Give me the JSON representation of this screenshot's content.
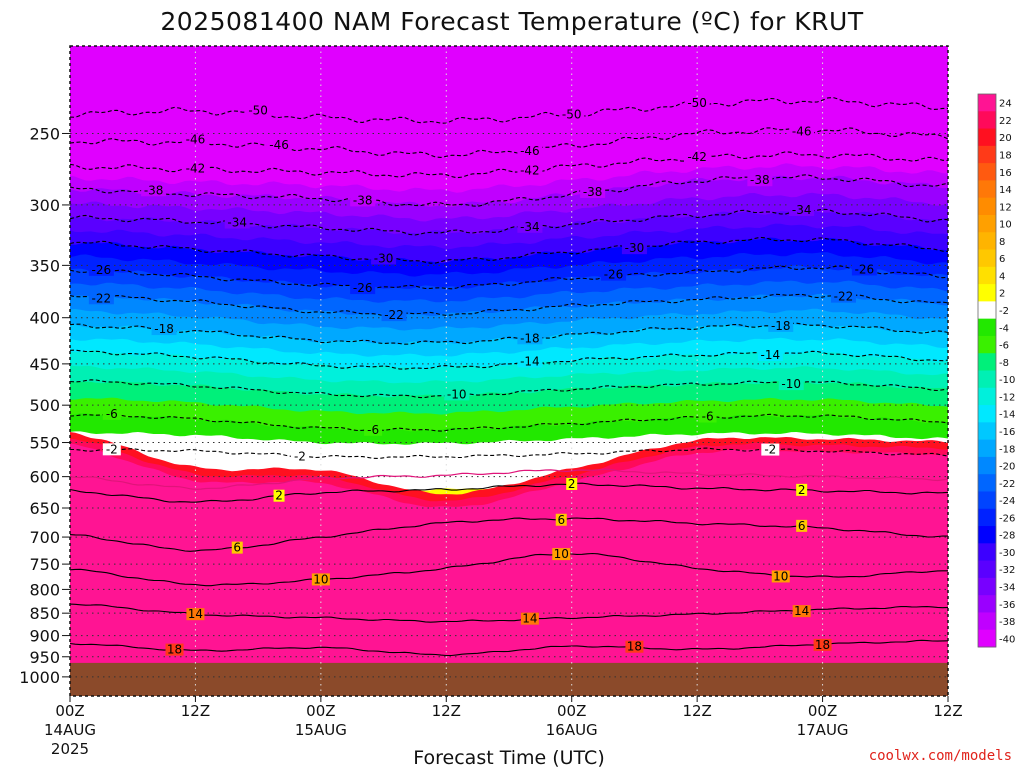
{
  "title": "2025081400 NAM Forecast Temperature (ºC) for KRUT",
  "credit": "coolwx.com/models",
  "chart_data": {
    "type": "heatmap",
    "title": "2025081400 NAM Forecast Temperature (ºC) for KRUT",
    "xlabel": "Forecast Time (UTC)",
    "ylabel": "",
    "x_ticks": [
      {
        "top": "00Z",
        "mid": "14AUG",
        "bot": "2025"
      },
      {
        "top": "12Z",
        "mid": "",
        "bot": ""
      },
      {
        "top": "00Z",
        "mid": "15AUG",
        "bot": ""
      },
      {
        "top": "12Z",
        "mid": "",
        "bot": ""
      },
      {
        "top": "00Z",
        "mid": "16AUG",
        "bot": ""
      },
      {
        "top": "12Z",
        "mid": "",
        "bot": ""
      },
      {
        "top": "00Z",
        "mid": "17AUG",
        "bot": ""
      },
      {
        "top": "12Z",
        "mid": "",
        "bot": ""
      }
    ],
    "y_ticks": [
      "250",
      "300",
      "350",
      "400",
      "450",
      "500",
      "550",
      "600",
      "650",
      "700",
      "750",
      "800",
      "850",
      "900",
      "950",
      "1000"
    ],
    "y_scale": "log pressure (hPa), inverted",
    "ylim": [
      1050,
      200
    ],
    "xlim_hours": [
      0,
      84
    ],
    "grid": true,
    "colorbar_labels": [
      "24",
      "22",
      "20",
      "18",
      "16",
      "14",
      "12",
      "10",
      "8",
      "6",
      "4",
      "2",
      "-2",
      "-4",
      "-6",
      "-8",
      "-10",
      "-12",
      "-14",
      "-16",
      "-18",
      "-20",
      "-22",
      "-24",
      "-26",
      "-28",
      "-30",
      "-32",
      "-34",
      "-36",
      "-38",
      "-40"
    ],
    "colorbar_colors": [
      "#ff1493",
      "#ff0a5a",
      "#ff1020",
      "#ff3a18",
      "#ff5a10",
      "#ff7808",
      "#ff8c00",
      "#ffa000",
      "#ffb400",
      "#ffc800",
      "#ffe000",
      "#ffff00",
      "#ffffff",
      "#22e800",
      "#3af000",
      "#00f07a",
      "#00f0b4",
      "#00f0dc",
      "#00e8ff",
      "#00c8ff",
      "#00a8ff",
      "#0088ff",
      "#0066ff",
      "#0044ff",
      "#0022ff",
      "#0000ff",
      "#3c00ff",
      "#5a00ff",
      "#7800ff",
      "#9a00ff",
      "#c000ff",
      "#e000ff"
    ],
    "terrain_color": "#8b4a2a",
    "isotherm_profiles": [
      {
        "label": "-50",
        "p": [
          238,
          236,
          240,
          242,
          238,
          232,
          230,
          234
        ]
      },
      {
        "label": "-46",
        "p": [
          255,
          256,
          260,
          264,
          258,
          250,
          248,
          252
        ]
      },
      {
        "label": "-42",
        "p": [
          272,
          274,
          276,
          278,
          272,
          266,
          264,
          268
        ]
      },
      {
        "label": "-38",
        "p": [
          288,
          292,
          295,
          300,
          292,
          282,
          280,
          286
        ]
      },
      {
        "label": "-34",
        "p": [
          310,
          313,
          318,
          322,
          315,
          308,
          305,
          312
        ]
      },
      {
        "label": "-30",
        "p": [
          330,
          336,
          342,
          346,
          338,
          330,
          328,
          336
        ]
      },
      {
        "label": "-26",
        "p": [
          354,
          360,
          368,
          370,
          362,
          356,
          352,
          360
        ]
      },
      {
        "label": "-22",
        "p": [
          378,
          384,
          394,
          396,
          388,
          382,
          378,
          386
        ]
      },
      {
        "label": "-18",
        "p": [
          408,
          414,
          424,
          426,
          418,
          410,
          408,
          416
        ]
      },
      {
        "label": "-14",
        "p": [
          436,
          442,
          452,
          454,
          446,
          440,
          438,
          446
        ]
      },
      {
        "label": "-10",
        "p": [
          470,
          476,
          486,
          488,
          480,
          474,
          472,
          480
        ]
      },
      {
        "label": "-6",
        "p": [
          512,
          518,
          530,
          532,
          524,
          516,
          514,
          522
        ]
      },
      {
        "label": "-2",
        "p": [
          560,
          562,
          570,
          570,
          566,
          560,
          562,
          568
        ]
      },
      {
        "label": "2",
        "p": [
          622,
          640,
          625,
          620,
          612,
          618,
          622,
          626
        ]
      },
      {
        "label": "6",
        "p": [
          696,
          724,
          700,
          675,
          668,
          676,
          684,
          700
        ]
      },
      {
        "label": "10",
        "p": [
          760,
          790,
          780,
          758,
          730,
          758,
          775,
          762
        ]
      },
      {
        "label": "14",
        "p": [
          830,
          852,
          860,
          868,
          860,
          852,
          842,
          836
        ]
      },
      {
        "label": "18",
        "p": [
          918,
          935,
          928,
          945,
          925,
          932,
          920,
          912
        ]
      }
    ],
    "isotherm_label_positions_hours": [
      [
        18,
        48,
        60
      ],
      [
        12,
        20,
        44,
        70
      ],
      [
        12,
        44,
        60
      ],
      [
        8,
        28,
        50,
        66
      ],
      [
        16,
        44,
        70
      ],
      [
        30,
        54
      ],
      [
        3,
        28,
        52,
        76
      ],
      [
        3,
        31,
        74
      ],
      [
        9,
        44,
        68
      ],
      [
        44,
        67
      ],
      [
        37,
        69
      ],
      [
        4,
        29,
        61
      ],
      [
        4,
        22,
        67
      ],
      [
        20,
        48,
        70
      ],
      [
        16,
        47,
        70
      ],
      [
        24,
        47,
        68
      ],
      [
        12,
        44,
        70
      ],
      [
        10,
        54,
        72
      ]
    ]
  }
}
